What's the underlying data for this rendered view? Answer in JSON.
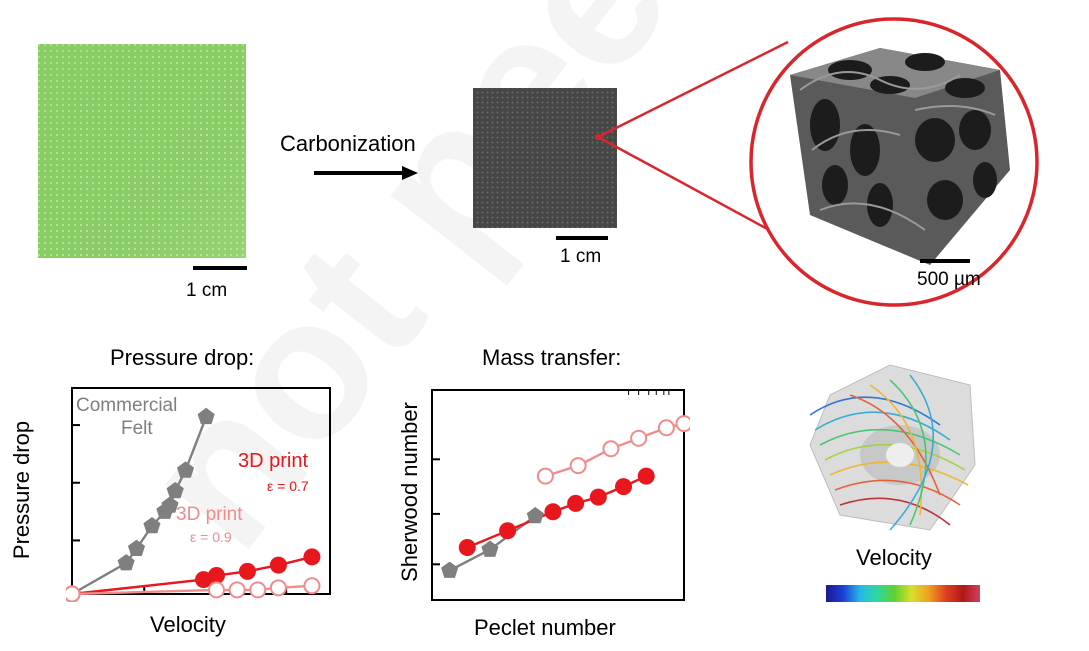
{
  "top": {
    "process_label": "Carbonization",
    "scalebar_green": "1 cm",
    "scalebar_carbon": "1 cm",
    "scalebar_micro": "500 µm"
  },
  "pressure_chart": {
    "title": "Pressure drop:",
    "xlabel": "Velocity",
    "ylabel": "Pressure drop",
    "annotations": {
      "felt_line1": "Commercial",
      "felt_line2": "Felt",
      "print07_name": "3D print",
      "print07_eps": "ε = 0.7",
      "print09_name": "3D print",
      "print09_eps": "ε = 0.9"
    }
  },
  "mass_chart": {
    "title": "Mass transfer:",
    "xlabel": "Peclet number",
    "ylabel": "Sherwood number"
  },
  "simulation": {
    "colorbar_label": "Velocity"
  },
  "chart_data": [
    {
      "type": "line",
      "title": "Pressure drop:",
      "xlabel": "Velocity",
      "ylabel": "Pressure drop",
      "xlim": [
        0,
        1
      ],
      "ylim": [
        0,
        1
      ],
      "colors": {
        "felt": "#7f7f7f",
        "print07": "#e8161d",
        "print09": "#f08c8c"
      },
      "series": [
        {
          "name": "Commercial Felt",
          "marker": "pentagon-filled",
          "x": [
            0.0,
            0.21,
            0.25,
            0.31,
            0.36,
            0.38,
            0.4,
            0.44,
            0.52
          ],
          "y": [
            0.0,
            0.15,
            0.22,
            0.33,
            0.4,
            0.43,
            0.5,
            0.6,
            0.86
          ]
        },
        {
          "name": "3D print ε = 0.7",
          "marker": "circle-filled",
          "x": [
            0.0,
            0.51,
            0.56,
            0.68,
            0.8,
            0.93
          ],
          "y": [
            0.0,
            0.07,
            0.09,
            0.11,
            0.14,
            0.18
          ]
        },
        {
          "name": "3D print ε = 0.9",
          "marker": "circle-open",
          "x": [
            0.0,
            0.56,
            0.64,
            0.72,
            0.8,
            0.93
          ],
          "y": [
            0.0,
            0.02,
            0.02,
            0.02,
            0.03,
            0.04
          ]
        }
      ]
    },
    {
      "type": "scatter",
      "title": "Mass transfer:",
      "xlabel": "Peclet number",
      "ylabel": "Sherwood number",
      "xscale": "log",
      "yscale": "log",
      "xlim": [
        0,
        1
      ],
      "ylim": [
        0,
        1
      ],
      "colors": {
        "felt": "#7f7f7f",
        "print07": "#e8161d",
        "print09": "#f08c8c"
      },
      "series": [
        {
          "name": "Commercial Felt",
          "marker": "pentagon-filled",
          "x": [
            0.07,
            0.23,
            0.41
          ],
          "y": [
            0.14,
            0.24,
            0.4
          ]
        },
        {
          "name": "3D print ε = 0.7",
          "marker": "circle-filled",
          "x": [
            0.14,
            0.3,
            0.48,
            0.57,
            0.66,
            0.76,
            0.85
          ],
          "y": [
            0.25,
            0.33,
            0.42,
            0.46,
            0.49,
            0.54,
            0.59
          ]
        },
        {
          "name": "3D print ε = 0.9",
          "marker": "circle-open",
          "x": [
            0.45,
            0.58,
            0.71,
            0.82,
            0.93,
            1.0
          ],
          "y": [
            0.59,
            0.64,
            0.72,
            0.77,
            0.82,
            0.84
          ]
        }
      ]
    }
  ]
}
